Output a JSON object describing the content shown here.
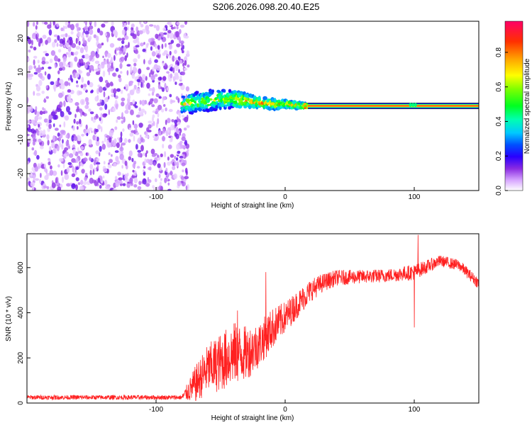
{
  "title": "S206.2026.098.20.40.E25",
  "chart_data": [
    {
      "type": "heatmap",
      "xlabel": "Height of straight line (km)",
      "ylabel": "Frequency (Hz)",
      "xlim": [
        -200,
        150
      ],
      "ylim": [
        -25,
        25
      ],
      "xticks": [
        -100,
        0,
        100
      ],
      "yticks": [
        -20,
        -10,
        0,
        10,
        20
      ],
      "noise_region": {
        "x": [
          -200,
          -75
        ],
        "y": [
          -25,
          25
        ]
      },
      "signal_track": [
        {
          "x": -80,
          "y": 0.5,
          "halfwidth": 2.5
        },
        {
          "x": -70,
          "y": 1.0,
          "halfwidth": 3.0
        },
        {
          "x": -60,
          "y": 1.5,
          "halfwidth": 3.0
        },
        {
          "x": -50,
          "y": 2.0,
          "halfwidth": 3.0
        },
        {
          "x": -40,
          "y": 2.0,
          "halfwidth": 2.5
        },
        {
          "x": -30,
          "y": 1.5,
          "halfwidth": 2.0
        },
        {
          "x": -20,
          "y": 1.0,
          "halfwidth": 1.5
        },
        {
          "x": -10,
          "y": 0.5,
          "halfwidth": 1.5
        },
        {
          "x": 0,
          "y": 0.5,
          "halfwidth": 1.2
        },
        {
          "x": 15,
          "y": 0.0,
          "halfwidth": 0.8
        },
        {
          "x": 150,
          "y": 0.0,
          "halfwidth": 0.8
        }
      ],
      "colorbar": {
        "label": "Normalized spectral amplitude",
        "range": [
          0,
          0.98
        ],
        "ticks": [
          0.0,
          0.2,
          0.4,
          0.6,
          0.8
        ]
      }
    },
    {
      "type": "line",
      "xlabel": "Height of straight line (km)",
      "ylabel": "SNR (10 * v/v)",
      "xlim": [
        -200,
        150
      ],
      "ylim": [
        0,
        750
      ],
      "xticks": [
        -100,
        0,
        100
      ],
      "yticks": [
        0,
        200,
        400,
        600
      ],
      "series": [
        {
          "name": "SNR",
          "color": "#ff2020",
          "envelope": [
            {
              "x": -200,
              "y": 25,
              "noise": 10
            },
            {
              "x": -80,
              "y": 25,
              "noise": 10
            },
            {
              "x": -70,
              "y": 80,
              "noise": 80
            },
            {
              "x": -60,
              "y": 150,
              "noise": 110
            },
            {
              "x": -50,
              "y": 180,
              "noise": 130
            },
            {
              "x": -40,
              "y": 220,
              "noise": 140
            },
            {
              "x": -30,
              "y": 220,
              "noise": 120
            },
            {
              "x": -20,
              "y": 260,
              "noise": 100
            },
            {
              "x": -10,
              "y": 330,
              "noise": 90
            },
            {
              "x": 0,
              "y": 380,
              "noise": 70
            },
            {
              "x": 10,
              "y": 440,
              "noise": 60
            },
            {
              "x": 20,
              "y": 500,
              "noise": 50
            },
            {
              "x": 30,
              "y": 535,
              "noise": 40
            },
            {
              "x": 40,
              "y": 555,
              "noise": 35
            },
            {
              "x": 60,
              "y": 560,
              "noise": 30
            },
            {
              "x": 80,
              "y": 565,
              "noise": 30
            },
            {
              "x": 100,
              "y": 580,
              "noise": 35
            },
            {
              "x": 120,
              "y": 630,
              "noise": 25
            },
            {
              "x": 135,
              "y": 610,
              "noise": 25
            },
            {
              "x": 150,
              "y": 530,
              "noise": 25
            }
          ],
          "spikes": [
            {
              "x": -15,
              "y": 580
            },
            {
              "x": -37,
              "y": 410
            },
            {
              "x": 100,
              "y": 335
            },
            {
              "x": 103,
              "y": 745
            }
          ]
        }
      ]
    }
  ]
}
